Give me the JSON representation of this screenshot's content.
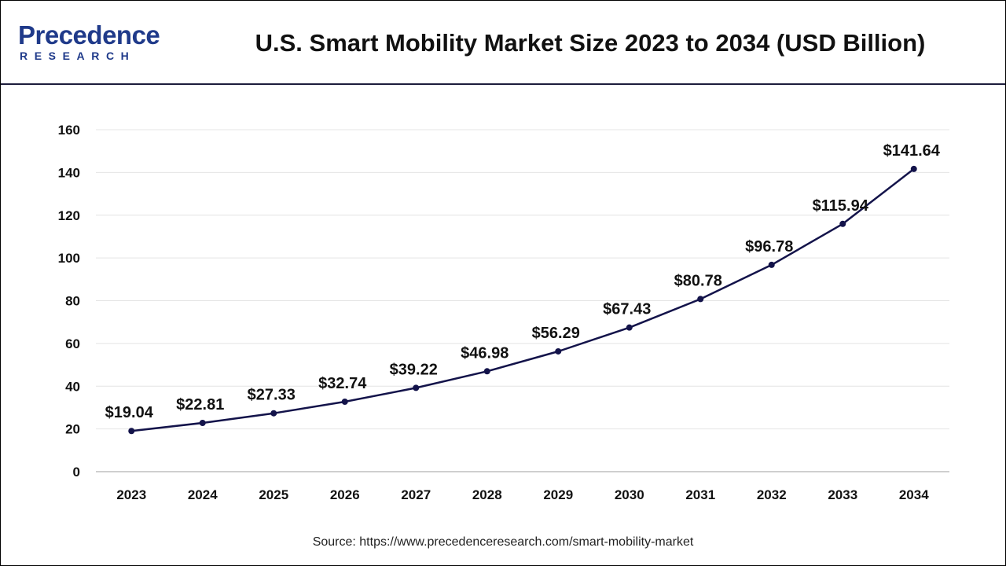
{
  "header": {
    "logo_main": "Precedence",
    "logo_sub": "RESEARCH",
    "title": "U.S. Smart Mobility Market Size 2023 to 2034 (USD Billion)"
  },
  "source_text": "Source: https://www.precedenceresearch.com/smart-mobility-market",
  "colors": {
    "line": "#13134a",
    "brand": "#1f3a8a",
    "grid": "#e4e4e4",
    "axis": "#bfbfbf"
  },
  "chart_data": {
    "type": "line",
    "title": "U.S. Smart Mobility Market Size 2023 to 2034 (USD Billion)",
    "xlabel": "",
    "ylabel": "",
    "categories": [
      "2023",
      "2024",
      "2025",
      "2026",
      "2027",
      "2028",
      "2029",
      "2030",
      "2031",
      "2032",
      "2033",
      "2034"
    ],
    "series": [
      {
        "values": [
          19.04,
          22.81,
          27.33,
          32.74,
          39.22,
          46.98,
          56.29,
          67.43,
          80.78,
          96.78,
          115.94,
          141.64
        ],
        "labels": [
          "$19.04",
          "$22.81",
          "$27.33",
          "$32.74",
          "$39.22",
          "$46.98",
          "$56.29",
          "$67.43",
          "$80.78",
          "$96.78",
          "$115.94",
          "$141.64"
        ]
      }
    ],
    "ylim": [
      0,
      160
    ],
    "yticks": [
      "0",
      "20",
      "40",
      "60",
      "80",
      "100",
      "120",
      "140",
      "160"
    ],
    "grid": true,
    "legend": "none"
  }
}
